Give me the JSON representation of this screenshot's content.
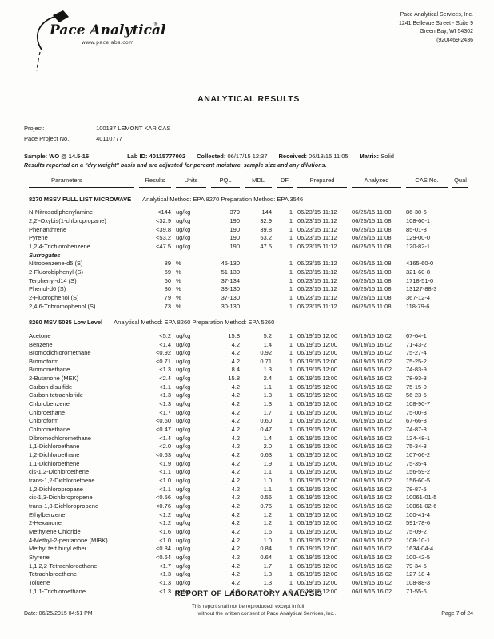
{
  "header": {
    "logo_text": "Pace Analytical",
    "logo_reg": "®",
    "logo_url": "www.pacelabs.com",
    "company_lines": [
      "Pace Analytical Services, Inc.",
      "1241 Bellevue Street - Suite 9",
      "Green Bay, WI 54302",
      "(920)469-2436"
    ]
  },
  "title": "ANALYTICAL RESULTS",
  "project": {
    "label": "Project:",
    "value": "100137 LEMONT KAR CAS",
    "number_label": "Pace Project No.:",
    "number_value": "40110777"
  },
  "sample_info": {
    "sample_label": "Sample:",
    "sample_value": "WO @ 14.5-16",
    "lab_id_label": "Lab ID:",
    "lab_id_value": "40115777002",
    "collected_label": "Collected:",
    "collected_value": "06/17/15 12:37",
    "received_label": "Received:",
    "received_value": "06/18/15 11:05",
    "matrix_label": "Matrix:",
    "matrix_value": "Solid"
  },
  "note": "Results reported on a \"dry weight\" basis and are adjusted for percent moisture, sample size and any dilutions.",
  "columns": [
    "Parameters",
    "Results",
    "Units",
    "PQL",
    "MDL",
    "DF",
    "Prepared",
    "Analyzed",
    "CAS No.",
    "Qual"
  ],
  "sections": [
    {
      "name": "8270 MSSV FULL LIST MICROWAVE",
      "method": "Analytical Method:  EPA 8270  Preparation Method: EPA 3546",
      "rows": [
        [
          "N-Nitrosodiphenylamine",
          "<144",
          "ug/kg",
          "379",
          "144",
          "1",
          "06/23/15 11:12",
          "06/25/15 11:08",
          "86-30-6",
          ""
        ],
        [
          "2,2'-Oxybis(1-chloropropane)",
          "<32.9",
          "ug/kg",
          "190",
          "32.9",
          "1",
          "06/23/15 11:12",
          "06/25/15 11:08",
          "108-60-1",
          ""
        ],
        [
          "Phenanthrene",
          "<39.8",
          "ug/kg",
          "190",
          "39.8",
          "1",
          "06/23/15 11:12",
          "06/25/15 11:08",
          "85-01-8",
          ""
        ],
        [
          "Pyrene",
          "<53.2",
          "ug/kg",
          "190",
          "53.2",
          "1",
          "06/23/15 11:12",
          "06/25/15 11:08",
          "129-00-0",
          ""
        ],
        [
          "1,2,4-Trichlorobenzene",
          "<47.5",
          "ug/kg",
          "190",
          "47.5",
          "1",
          "06/23/15 11:12",
          "06/25/15 11:08",
          "120-82-1",
          ""
        ]
      ],
      "surrogates_label": "Surrogates",
      "surrogate_rows": [
        [
          "Nitrobenzene-d5 (S)",
          "89",
          "%",
          "45-130",
          "",
          "1",
          "06/23/15 11:12",
          "06/25/15 11:08",
          "4165-60-0",
          ""
        ],
        [
          "2-Fluorobiphenyl (S)",
          "69",
          "%",
          "51-130",
          "",
          "1",
          "06/23/15 11:12",
          "06/25/15 11:08",
          "321-60-8",
          ""
        ],
        [
          "Terphenyl-d14 (S)",
          "60",
          "%",
          "37-134",
          "",
          "1",
          "06/23/15 11:12",
          "06/25/15 11:08",
          "1718-51-0",
          ""
        ],
        [
          "Phenol-d6 (S)",
          "80",
          "%",
          "38-130",
          "",
          "1",
          "06/23/15 11:12",
          "06/25/15 11:08",
          "13127-88-3",
          ""
        ],
        [
          "2-Fluorophenol (S)",
          "79",
          "%",
          "37-130",
          "",
          "1",
          "06/23/15 11:12",
          "06/25/15 11:08",
          "367-12-4",
          ""
        ],
        [
          "2,4,6-Tribromophenol (S)",
          "73",
          "%",
          "30-130",
          "",
          "1",
          "06/23/15 11:12",
          "06/25/15 11:08",
          "118-79-6",
          ""
        ]
      ]
    },
    {
      "name": "8260 MSV 5035 Low Level",
      "method": "Analytical Method:  EPA 8260  Preparation Method: EPA 5260",
      "rows": [
        [
          "Acetone",
          "<5.2",
          "ug/kg",
          "15.8",
          "5.2",
          "1",
          "06/19/15 12:00",
          "06/19/15 16:02",
          "67-64-1",
          ""
        ],
        [
          "Benzene",
          "<1.4",
          "ug/kg",
          "4.2",
          "1.4",
          "1",
          "06/19/15 12:00",
          "06/19/15 16:02",
          "71-43-2",
          ""
        ],
        [
          "Bromodichloromethane",
          "<0.92",
          "ug/kg",
          "4.2",
          "0.92",
          "1",
          "06/19/15 12:00",
          "06/19/15 16:02",
          "75-27-4",
          ""
        ],
        [
          "Bromoform",
          "<0.71",
          "ug/kg",
          "4.2",
          "0.71",
          "1",
          "06/19/15 12:00",
          "06/19/15 16:02",
          "75-25-2",
          ""
        ],
        [
          "Bromomethane",
          "<1.3",
          "ug/kg",
          "8.4",
          "1.3",
          "1",
          "06/19/15 12:00",
          "06/19/15 16:02",
          "74-83-9",
          ""
        ],
        [
          "2-Butanone (MEK)",
          "<2.4",
          "ug/kg",
          "15.8",
          "2.4",
          "1",
          "06/19/15 12:00",
          "06/19/15 16:02",
          "78-93-3",
          ""
        ],
        [
          "Carbon disulfide",
          "<1.1",
          "ug/kg",
          "4.2",
          "1.1",
          "1",
          "06/19/15 12:00",
          "06/19/15 16:02",
          "75-15-0",
          ""
        ],
        [
          "Carbon tetrachloride",
          "<1.3",
          "ug/kg",
          "4.2",
          "1.3",
          "1",
          "06/19/15 12:00",
          "06/19/15 16:02",
          "56-23-5",
          ""
        ],
        [
          "Chlorobenzene",
          "<1.3",
          "ug/kg",
          "4.2",
          "1.3",
          "1",
          "06/19/15 12:00",
          "06/19/15 16:02",
          "108-90-7",
          ""
        ],
        [
          "Chloroethane",
          "<1.7",
          "ug/kg",
          "4.2",
          "1.7",
          "1",
          "06/19/15 12:00",
          "06/19/15 16:02",
          "75-00-3",
          ""
        ],
        [
          "Chloroform",
          "<0.60",
          "ug/kg",
          "4.2",
          "0.60",
          "1",
          "06/19/15 12:00",
          "06/19/15 16:02",
          "67-66-3",
          ""
        ],
        [
          "Chloromethane",
          "<0.47",
          "ug/kg",
          "4.2",
          "0.47",
          "1",
          "06/19/15 12:00",
          "06/19/15 16:02",
          "74-87-3",
          ""
        ],
        [
          "Dibromochloromethane",
          "<1.4",
          "ug/kg",
          "4.2",
          "1.4",
          "1",
          "06/19/15 12:00",
          "06/19/15 16:02",
          "124-48-1",
          ""
        ],
        [
          "1,1-Dichloroethane",
          "<2.0",
          "ug/kg",
          "4.2",
          "2.0",
          "1",
          "06/19/15 12:00",
          "06/19/15 16:02",
          "75-34-3",
          ""
        ],
        [
          "1,2-Dichloroethane",
          "<0.63",
          "ug/kg",
          "4.2",
          "0.63",
          "1",
          "06/19/15 12:00",
          "06/19/15 16:02",
          "107-06-2",
          ""
        ],
        [
          "1,1-Dichloroethene",
          "<1.9",
          "ug/kg",
          "4.2",
          "1.9",
          "1",
          "06/19/15 12:00",
          "06/19/15 16:02",
          "75-35-4",
          ""
        ],
        [
          "cis-1,2-Dichloroethene",
          "<1.1",
          "ug/kg",
          "4.2",
          "1.1",
          "1",
          "06/19/15 12:00",
          "06/19/15 16:02",
          "156-59-2",
          ""
        ],
        [
          "trans-1,2-Dichloroethene",
          "<1.0",
          "ug/kg",
          "4.2",
          "1.0",
          "1",
          "06/19/15 12:00",
          "06/19/15 16:02",
          "156-60-5",
          ""
        ],
        [
          "1,2-Dichloropropane",
          "<1.1",
          "ug/kg",
          "4.2",
          "1.1",
          "1",
          "06/19/15 12:00",
          "06/19/15 16:02",
          "78-87-5",
          ""
        ],
        [
          "cis-1,3-Dichloropropene",
          "<0.56",
          "ug/kg",
          "4.2",
          "0.56",
          "1",
          "06/19/15 12:00",
          "06/19/15 16:02",
          "10061-01-5",
          ""
        ],
        [
          "trans-1,3-Dichloropropene",
          "<0.76",
          "ug/kg",
          "4.2",
          "0.76",
          "1",
          "06/19/15 12:00",
          "06/19/15 16:02",
          "10061-02-6",
          ""
        ],
        [
          "Ethylbenzene",
          "<1.2",
          "ug/kg",
          "4.2",
          "1.2",
          "1",
          "06/19/15 12:00",
          "06/19/15 16:02",
          "100-41-4",
          ""
        ],
        [
          "2-Hexanone",
          "<1.2",
          "ug/kg",
          "4.2",
          "1.2",
          "1",
          "06/19/15 12:00",
          "06/19/15 16:02",
          "591-78-6",
          ""
        ],
        [
          "Methylene Chloride",
          "<1.6",
          "ug/kg",
          "4.2",
          "1.6",
          "1",
          "06/19/15 12:00",
          "06/19/15 16:02",
          "75-09-2",
          ""
        ],
        [
          "4-Methyl-2-pentanone (MIBK)",
          "<1.0",
          "ug/kg",
          "4.2",
          "1.0",
          "1",
          "06/19/15 12:00",
          "06/19/15 16:02",
          "108-10-1",
          ""
        ],
        [
          "Methyl tert butyl ether",
          "<0.84",
          "ug/kg",
          "4.2",
          "0.84",
          "1",
          "06/19/15 12:00",
          "06/19/15 16:02",
          "1634-04-4",
          ""
        ],
        [
          "Styrene",
          "<0.64",
          "ug/kg",
          "4.2",
          "0.64",
          "1",
          "06/19/15 12:00",
          "06/19/15 16:02",
          "100-42-5",
          ""
        ],
        [
          "1,1,2,2-Tetrachloroethane",
          "<1.7",
          "ug/kg",
          "4.2",
          "1.7",
          "1",
          "06/19/15 12:00",
          "06/19/15 16:02",
          "79-34-5",
          ""
        ],
        [
          "Tetrachloroethene",
          "<1.3",
          "ug/kg",
          "4.2",
          "1.3",
          "1",
          "06/19/15 12:00",
          "06/19/15 16:02",
          "127-18-4",
          ""
        ],
        [
          "Toluene",
          "<1.3",
          "ug/kg",
          "4.2",
          "1.3",
          "1",
          "06/19/15 12:00",
          "06/19/15 16:02",
          "108-88-3",
          ""
        ],
        [
          "1,1,1-Trichloroethane",
          "<1.3",
          "ug/kg",
          "4.2",
          "1.3",
          "1",
          "06/19/15 12:00",
          "06/19/15 16:02",
          "71-55-6",
          ""
        ]
      ]
    }
  ],
  "footer": {
    "report_title": "REPORT OF LABORATORY ANALYSIS",
    "disclaimer_line1": "This report shall not be reproduced, except in full,",
    "disclaimer_line2": "without the written consent of Pace Analytical Services, Inc..",
    "date_label": "Date: 06/25/2015 04:51 PM",
    "page_label": "Page 7 of 24"
  }
}
